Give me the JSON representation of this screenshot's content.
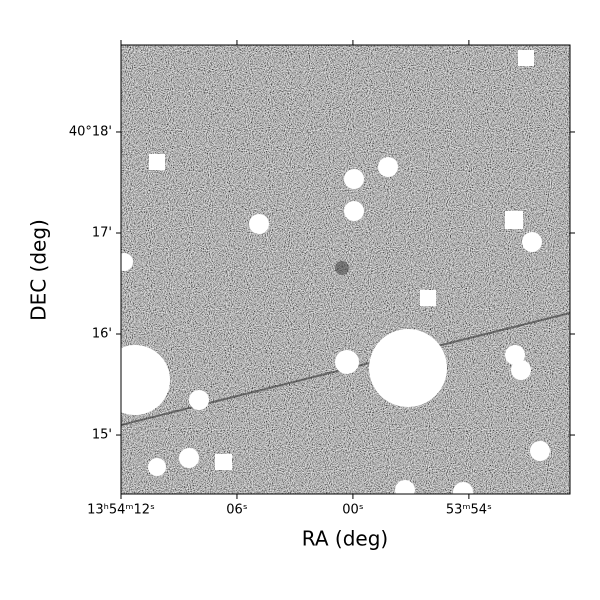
{
  "chart_data": {
    "type": "image",
    "x_label": "RA (deg)",
    "y_label": "DEC (deg)",
    "xlim": [
      208.55,
      208.4532
    ],
    "ylim": [
      40.24027,
      40.31435
    ],
    "xticks": [
      {
        "value": 208.55,
        "label": "13ʰ54ᵐ12ˢ"
      },
      {
        "value": 208.525,
        "label": "06ˢ"
      },
      {
        "value": 208.5,
        "label": "00ˢ"
      },
      {
        "value": 208.475,
        "label": "53ᵐ54ˢ"
      }
    ],
    "yticks": [
      {
        "value": 40.3,
        "label": "40°18'"
      },
      {
        "value": 40.28333,
        "label": "17'"
      },
      {
        "value": 40.26667,
        "label": "16'"
      },
      {
        "value": 40.25,
        "label": "15'"
      }
    ]
  }
}
